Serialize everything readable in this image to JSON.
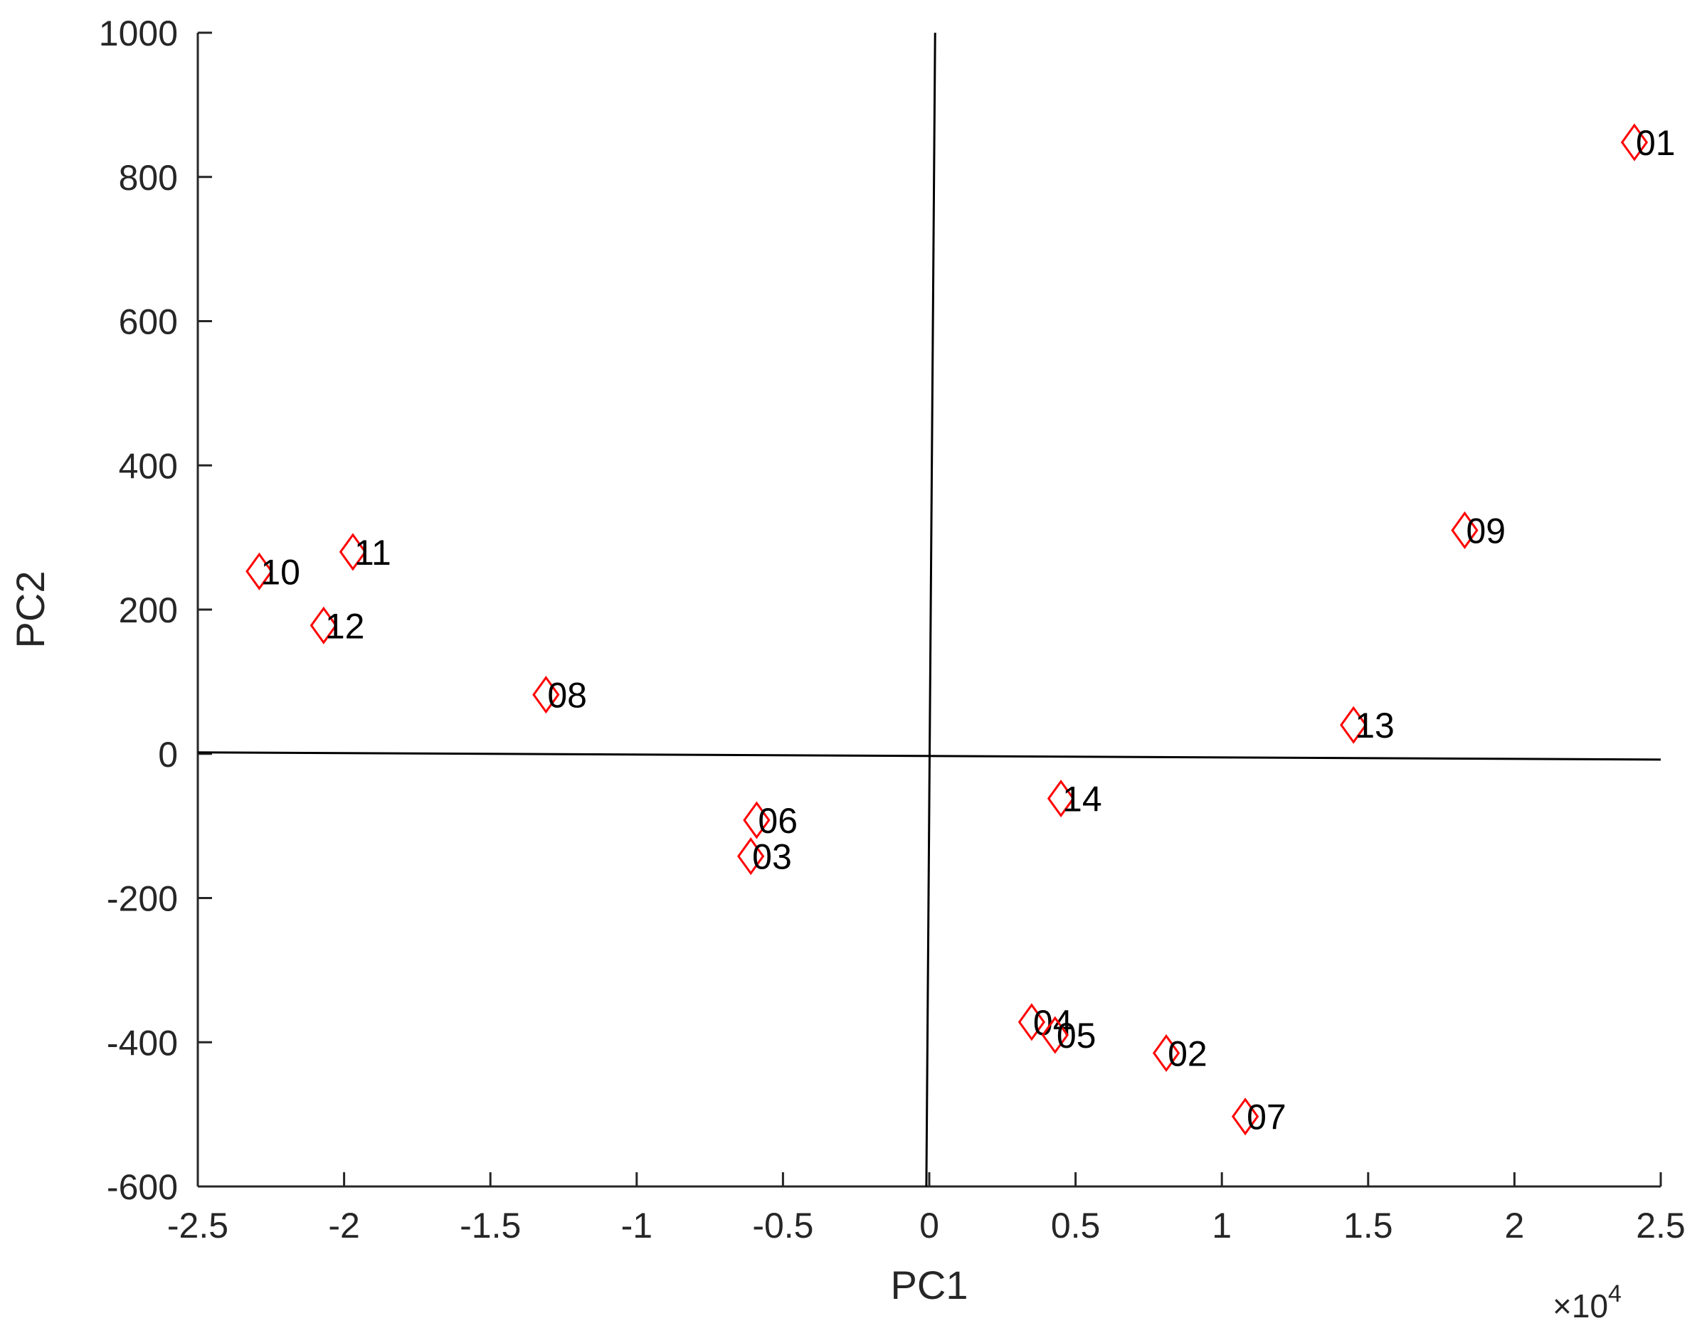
{
  "chart_data": {
    "type": "scatter",
    "xlabel": "PC1",
    "ylabel": "PC2",
    "x_exponent_label": "×10",
    "x_exponent_power": "4",
    "xlim": [
      -2.5,
      2.5
    ],
    "ylim": [
      -600,
      1000
    ],
    "x_ticks": [
      -2.5,
      -2,
      -1.5,
      -1,
      -0.5,
      0,
      0.5,
      1,
      1.5,
      2,
      2.5
    ],
    "x_tick_labels": [
      "-2.5",
      "-2",
      "-1.5",
      "-1",
      "-0.5",
      "0",
      "0.5",
      "1",
      "1.5",
      "2",
      "2.5"
    ],
    "y_ticks": [
      -600,
      -400,
      -200,
      0,
      200,
      400,
      600,
      800,
      1000
    ],
    "y_tick_labels": [
      "-600",
      "-400",
      "-200",
      "0",
      "200",
      "400",
      "600",
      "800",
      "1000"
    ],
    "grid": false,
    "marker": "diamond",
    "marker_color": "#ff0000",
    "zero_lines": true,
    "points": [
      {
        "label": "01",
        "x": 2.41,
        "y": 848
      },
      {
        "label": "02",
        "x": 0.81,
        "y": -415
      },
      {
        "label": "03",
        "x": -0.61,
        "y": -142
      },
      {
        "label": "04",
        "x": 0.35,
        "y": -372
      },
      {
        "label": "05",
        "x": 0.43,
        "y": -390
      },
      {
        "label": "06",
        "x": -0.59,
        "y": -92
      },
      {
        "label": "07",
        "x": 1.08,
        "y": -503
      },
      {
        "label": "08",
        "x": -1.31,
        "y": 82
      },
      {
        "label": "09",
        "x": 1.83,
        "y": 310
      },
      {
        "label": "10",
        "x": -2.29,
        "y": 253
      },
      {
        "label": "11",
        "x": -1.97,
        "y": 280
      },
      {
        "label": "12",
        "x": -2.07,
        "y": 178
      },
      {
        "label": "13",
        "x": 1.45,
        "y": 40
      },
      {
        "label": "14",
        "x": 0.45,
        "y": -62
      }
    ]
  }
}
